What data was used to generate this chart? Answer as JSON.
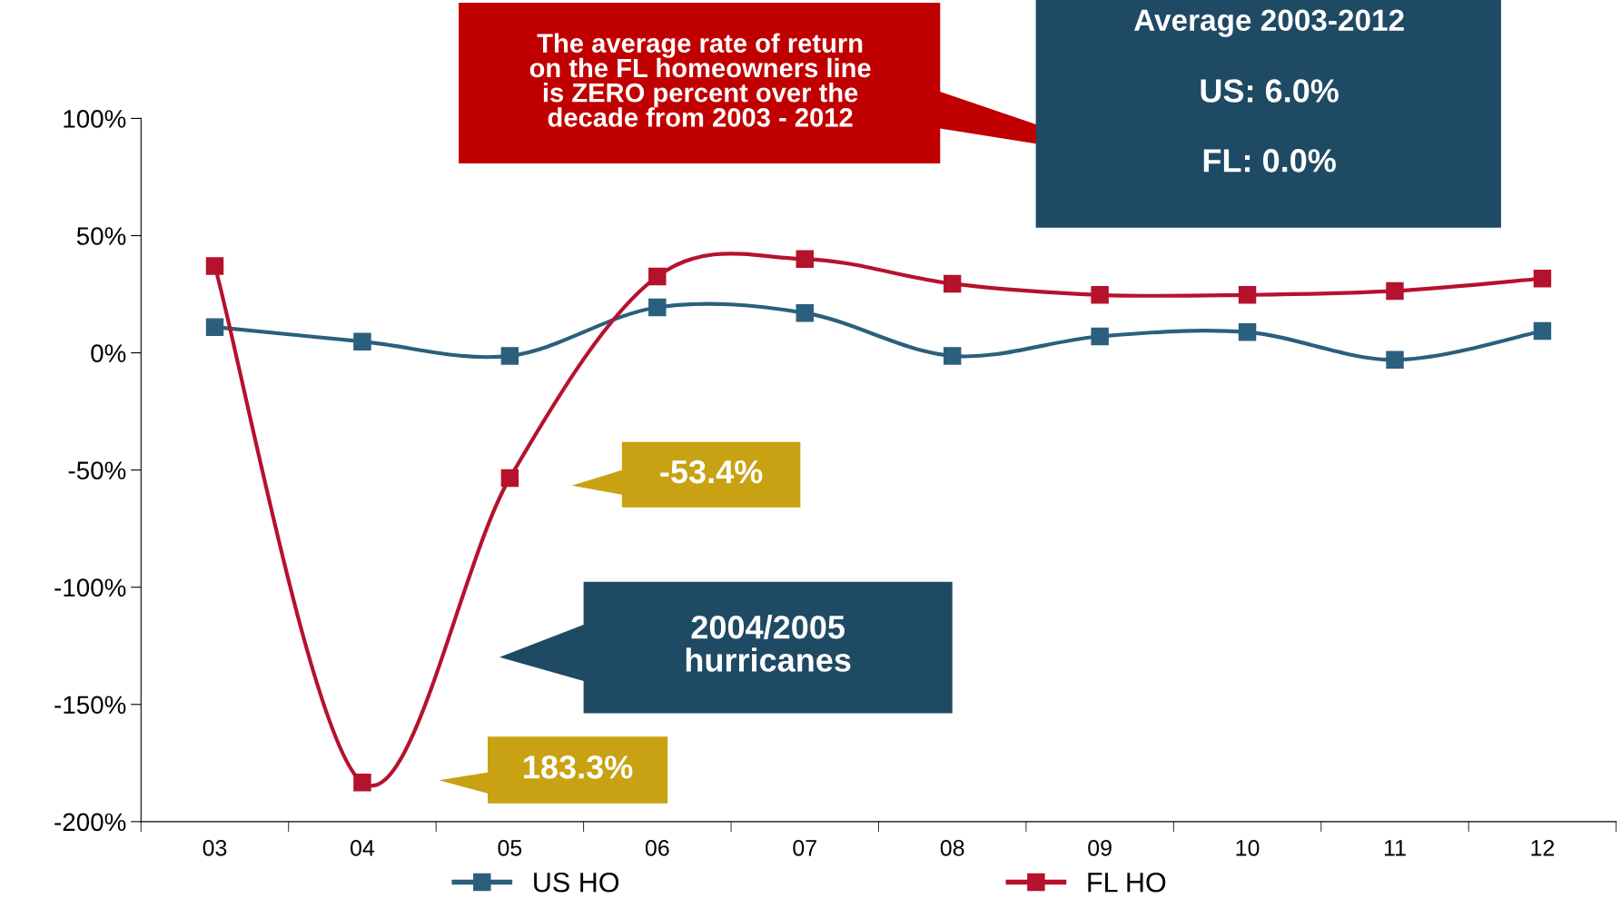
{
  "chart_data": {
    "type": "line",
    "categories": [
      "03",
      "04",
      "05",
      "06",
      "07",
      "08",
      "09",
      "10",
      "11",
      "12"
    ],
    "series": [
      {
        "name": "US HO",
        "color": "#2b5f7e",
        "values": [
          11,
          4.8,
          -1.3,
          19.4,
          17,
          -1.3,
          7,
          8.8,
          -3,
          9.3
        ]
      },
      {
        "name": "FL HO",
        "color": "#b5122e",
        "values": [
          37,
          -183.3,
          -53.4,
          32.6,
          40,
          29.5,
          24.7,
          24.7,
          26.4,
          31.7
        ]
      }
    ],
    "ylim": [
      -200,
      100
    ],
    "yticks": [
      {
        "value": -200,
        "label": "-200%"
      },
      {
        "value": -150,
        "label": "-150%"
      },
      {
        "value": -100,
        "label": "-100%"
      },
      {
        "value": -50,
        "label": "-50%"
      },
      {
        "value": 0,
        "label": "0%"
      },
      {
        "value": 50,
        "label": "50%"
      },
      {
        "value": 100,
        "label": "100%"
      }
    ],
    "marker": "square",
    "line_style": "solid",
    "grid": false,
    "legend": "bottom",
    "annotations": [
      "The average rate of return\non the FL homeowners line\nis ZERO percent over the\ndecade from 2003 - 2012",
      "Average 2003-2012",
      "US: 6.0%",
      "FL: 0.0%",
      "2004/2005\nhurricanes",
      "183.3%",
      "-53.4%"
    ]
  }
}
